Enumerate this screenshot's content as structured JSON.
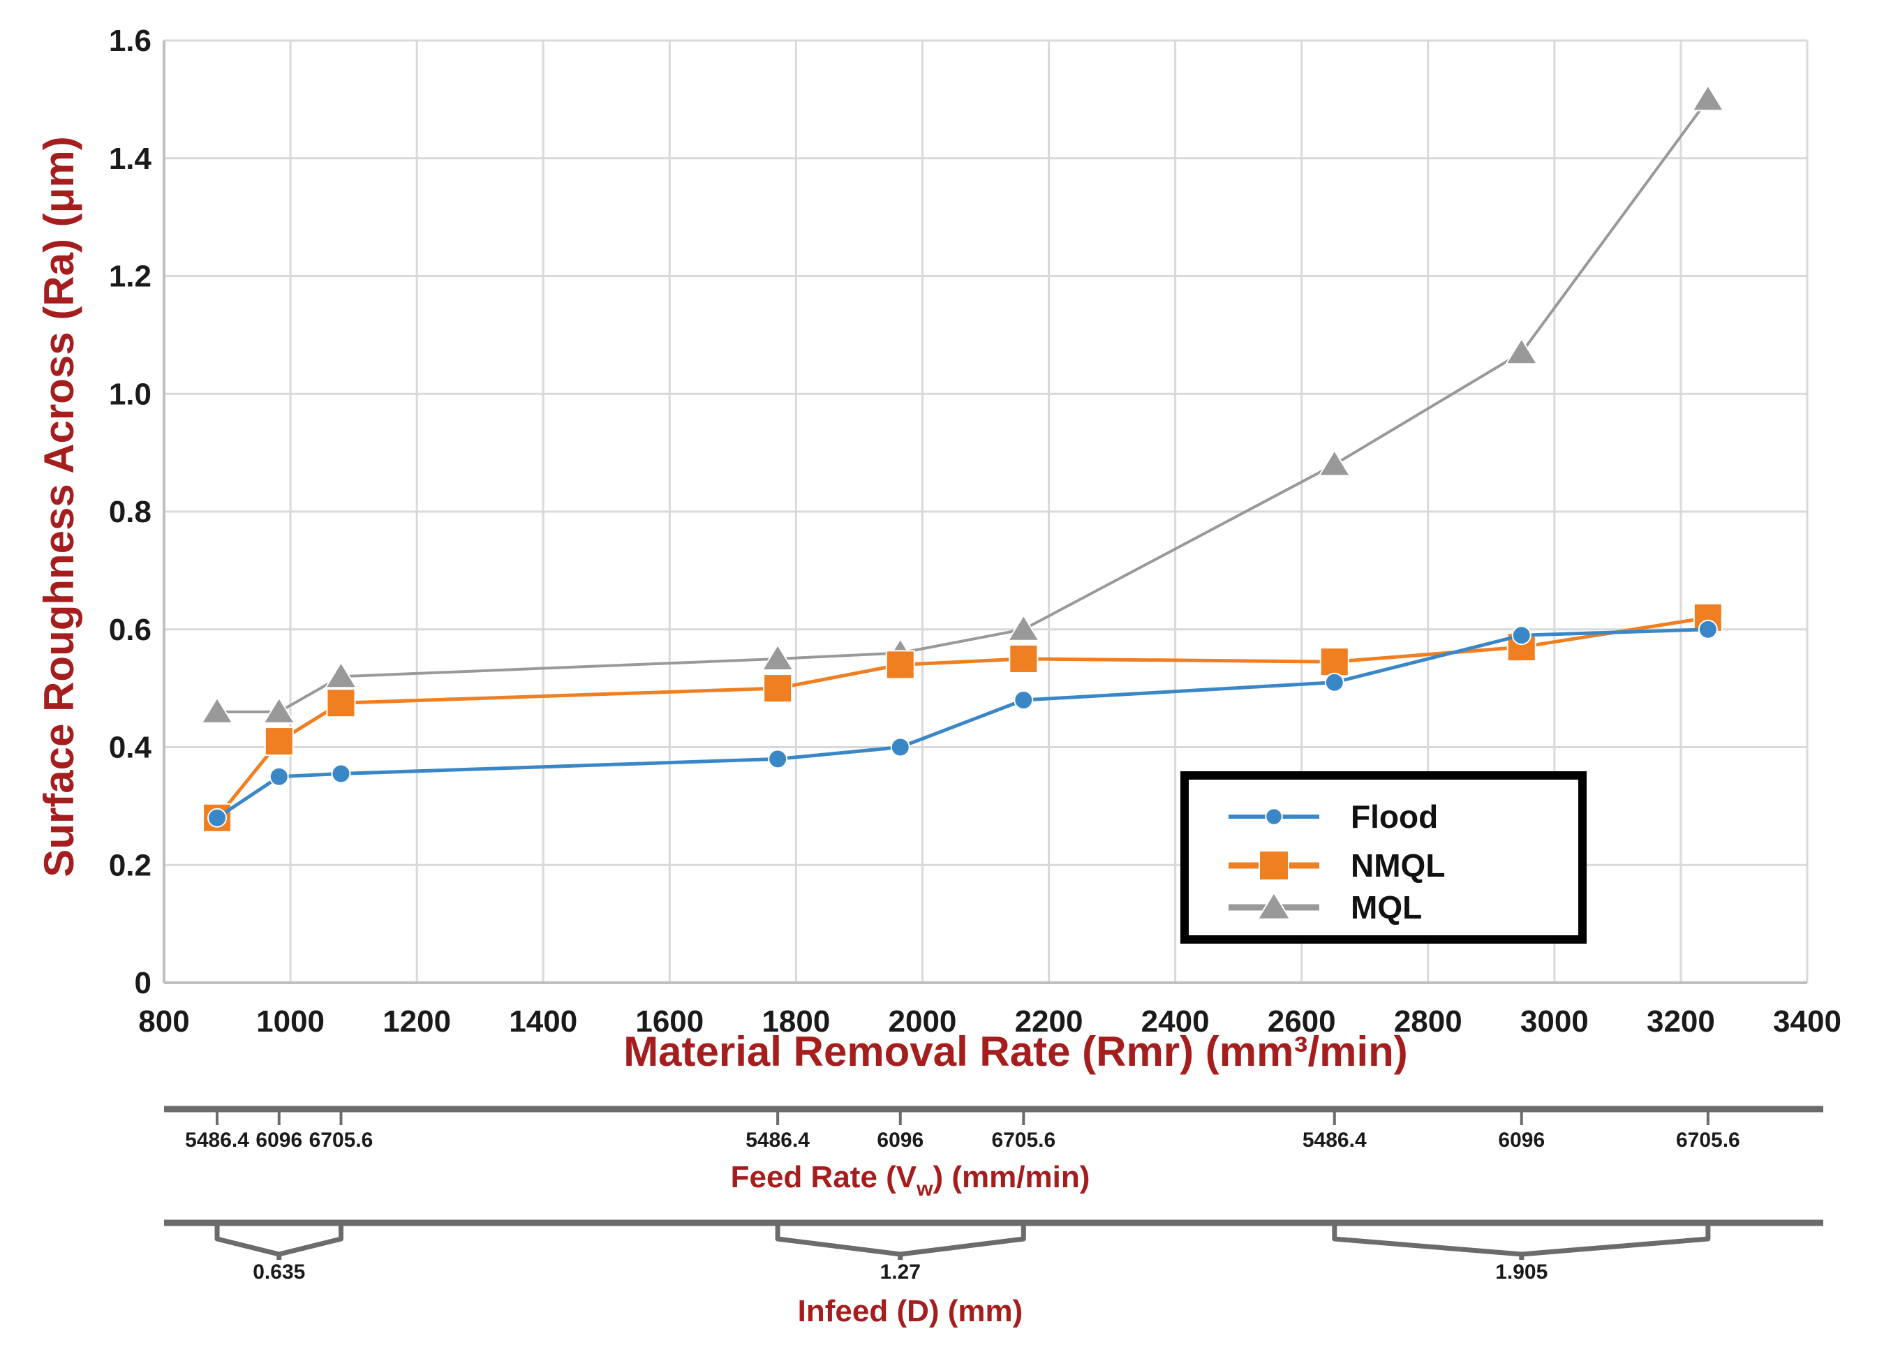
{
  "chart_data": {
    "type": "line",
    "xlabel": "Material Removal Rate (Rmr) (mm³/min)",
    "ylabel": "Surface Roughness Across (Ra) (μm)",
    "xlim": [
      800,
      3400
    ],
    "ylim": [
      0,
      1.6
    ],
    "x_ticks": [
      "800",
      "1000",
      "1200",
      "1400",
      "1600",
      "1800",
      "2000",
      "2200",
      "2400",
      "2600",
      "2800",
      "3000",
      "3200",
      "3400"
    ],
    "y_ticks": [
      "0",
      "0.2",
      "0.4",
      "0.6",
      "0.8",
      "1.0",
      "1.2",
      "1.4",
      "1.6"
    ],
    "x": [
      884,
      982,
      1080,
      1771,
      1965,
      2160,
      2652,
      2948,
      3243
    ],
    "series": [
      {
        "name": "Flood",
        "marker": "circle",
        "color": "#3a87c8",
        "values": [
          0.28,
          0.35,
          0.355,
          0.38,
          0.4,
          0.48,
          0.51,
          0.59,
          0.6
        ]
      },
      {
        "name": "NMQL",
        "marker": "square",
        "color": "#f07f21",
        "values": [
          0.28,
          0.41,
          0.475,
          0.5,
          0.54,
          0.55,
          0.545,
          0.57,
          0.62
        ]
      },
      {
        "name": "MQL",
        "marker": "triangle",
        "color": "#999999",
        "values": [
          0.46,
          0.46,
          0.52,
          0.55,
          0.56,
          0.6,
          0.88,
          1.07,
          1.5
        ]
      }
    ],
    "legend": {
      "position": "bottom-right",
      "entries": [
        "Flood",
        "NMQL",
        "MQL"
      ]
    },
    "grid": true,
    "feed_rate": {
      "title": "Feed Rate (Vw) (mm/min)",
      "title_main": "Feed Rate (V",
      "title_sub": "w",
      "title_tail": ") (mm/min)",
      "labels": [
        "5486.4",
        "6096",
        "6705.6",
        "5486.4",
        "6096",
        "6705.6",
        "5486.4",
        "6096",
        "6705.6"
      ]
    },
    "infeed": {
      "title": "Infeed (D) (mm)",
      "labels": [
        "0.635",
        "1.27",
        "1.905"
      ]
    }
  }
}
